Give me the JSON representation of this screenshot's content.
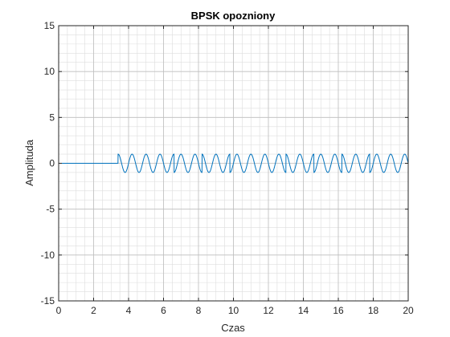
{
  "chart_data": {
    "type": "line",
    "title": "BPSK opozniony",
    "xlabel": "Czas",
    "ylabel": "Amplituda",
    "xlim": [
      0,
      20
    ],
    "ylim": [
      -15,
      15
    ],
    "xticks": [
      "0",
      "2",
      "4",
      "6",
      "8",
      "10",
      "12",
      "14",
      "16",
      "18",
      "20"
    ],
    "yticks": [
      "15",
      "10",
      "5",
      "0",
      "-5",
      "-10",
      "-15"
    ],
    "grid": true,
    "minor_grid": true,
    "line_color": "#0072BD",
    "signal": {
      "delay": 3.4,
      "amplitude": 1,
      "carrier_period": 0.8,
      "bit_duration": 1.6,
      "bits": [
        0,
        0,
        1,
        0,
        1,
        1,
        0,
        1,
        0,
        1
      ]
    }
  }
}
